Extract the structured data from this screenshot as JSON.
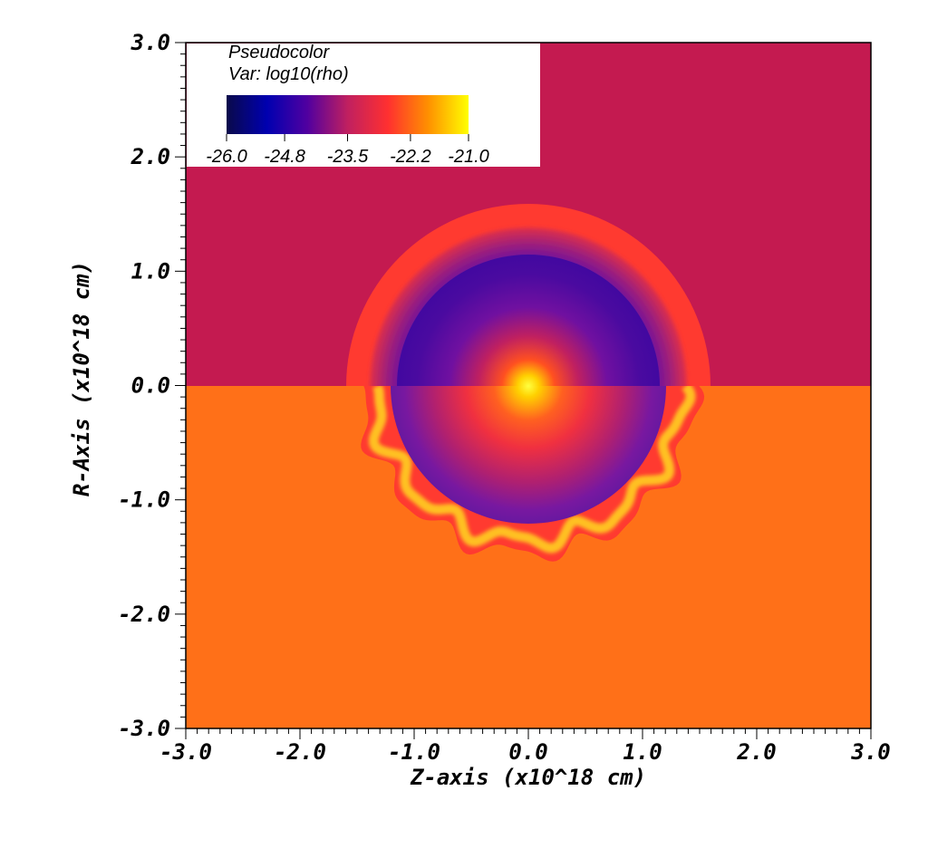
{
  "chart_data": {
    "type": "heatmap",
    "plot_kind": "Pseudocolor",
    "variable": "Var: log10(rho)",
    "legend_title": "Pseudocolor",
    "xlabel": "Z-axis (x10^18 cm)",
    "ylabel": "R-Axis (x10^18 cm)",
    "xlim": [
      -3.0,
      3.0
    ],
    "ylim": [
      -3.0,
      3.0
    ],
    "x_ticks": [
      "-3.0",
      "-2.0",
      "-1.0",
      "0.0",
      "1.0",
      "2.0",
      "3.0"
    ],
    "y_ticks": [
      "3.0",
      "2.0",
      "1.0",
      "0.0",
      "-1.0",
      "-2.0",
      "-3.0"
    ],
    "colorbar": {
      "range": [
        -26.0,
        -21.0
      ],
      "ticks": [
        "-26.0",
        "-24.8",
        "-23.5",
        "-22.2",
        "-21.0"
      ],
      "colors": [
        "#0a0a4a",
        "#0000b0",
        "#5000a0",
        "#c02060",
        "#ff3030",
        "#ff9000",
        "#ffff00"
      ]
    },
    "legend_placement": "top-left",
    "regions": {
      "top_half_background": "#c41a50",
      "bottom_half_background": "#ff7018",
      "shell_color": "#ff3a30",
      "cavity_edge_color": "#4a0aa0",
      "center_color": "#ffff40",
      "bottom_unstable_front_color": "#ffc020"
    }
  }
}
